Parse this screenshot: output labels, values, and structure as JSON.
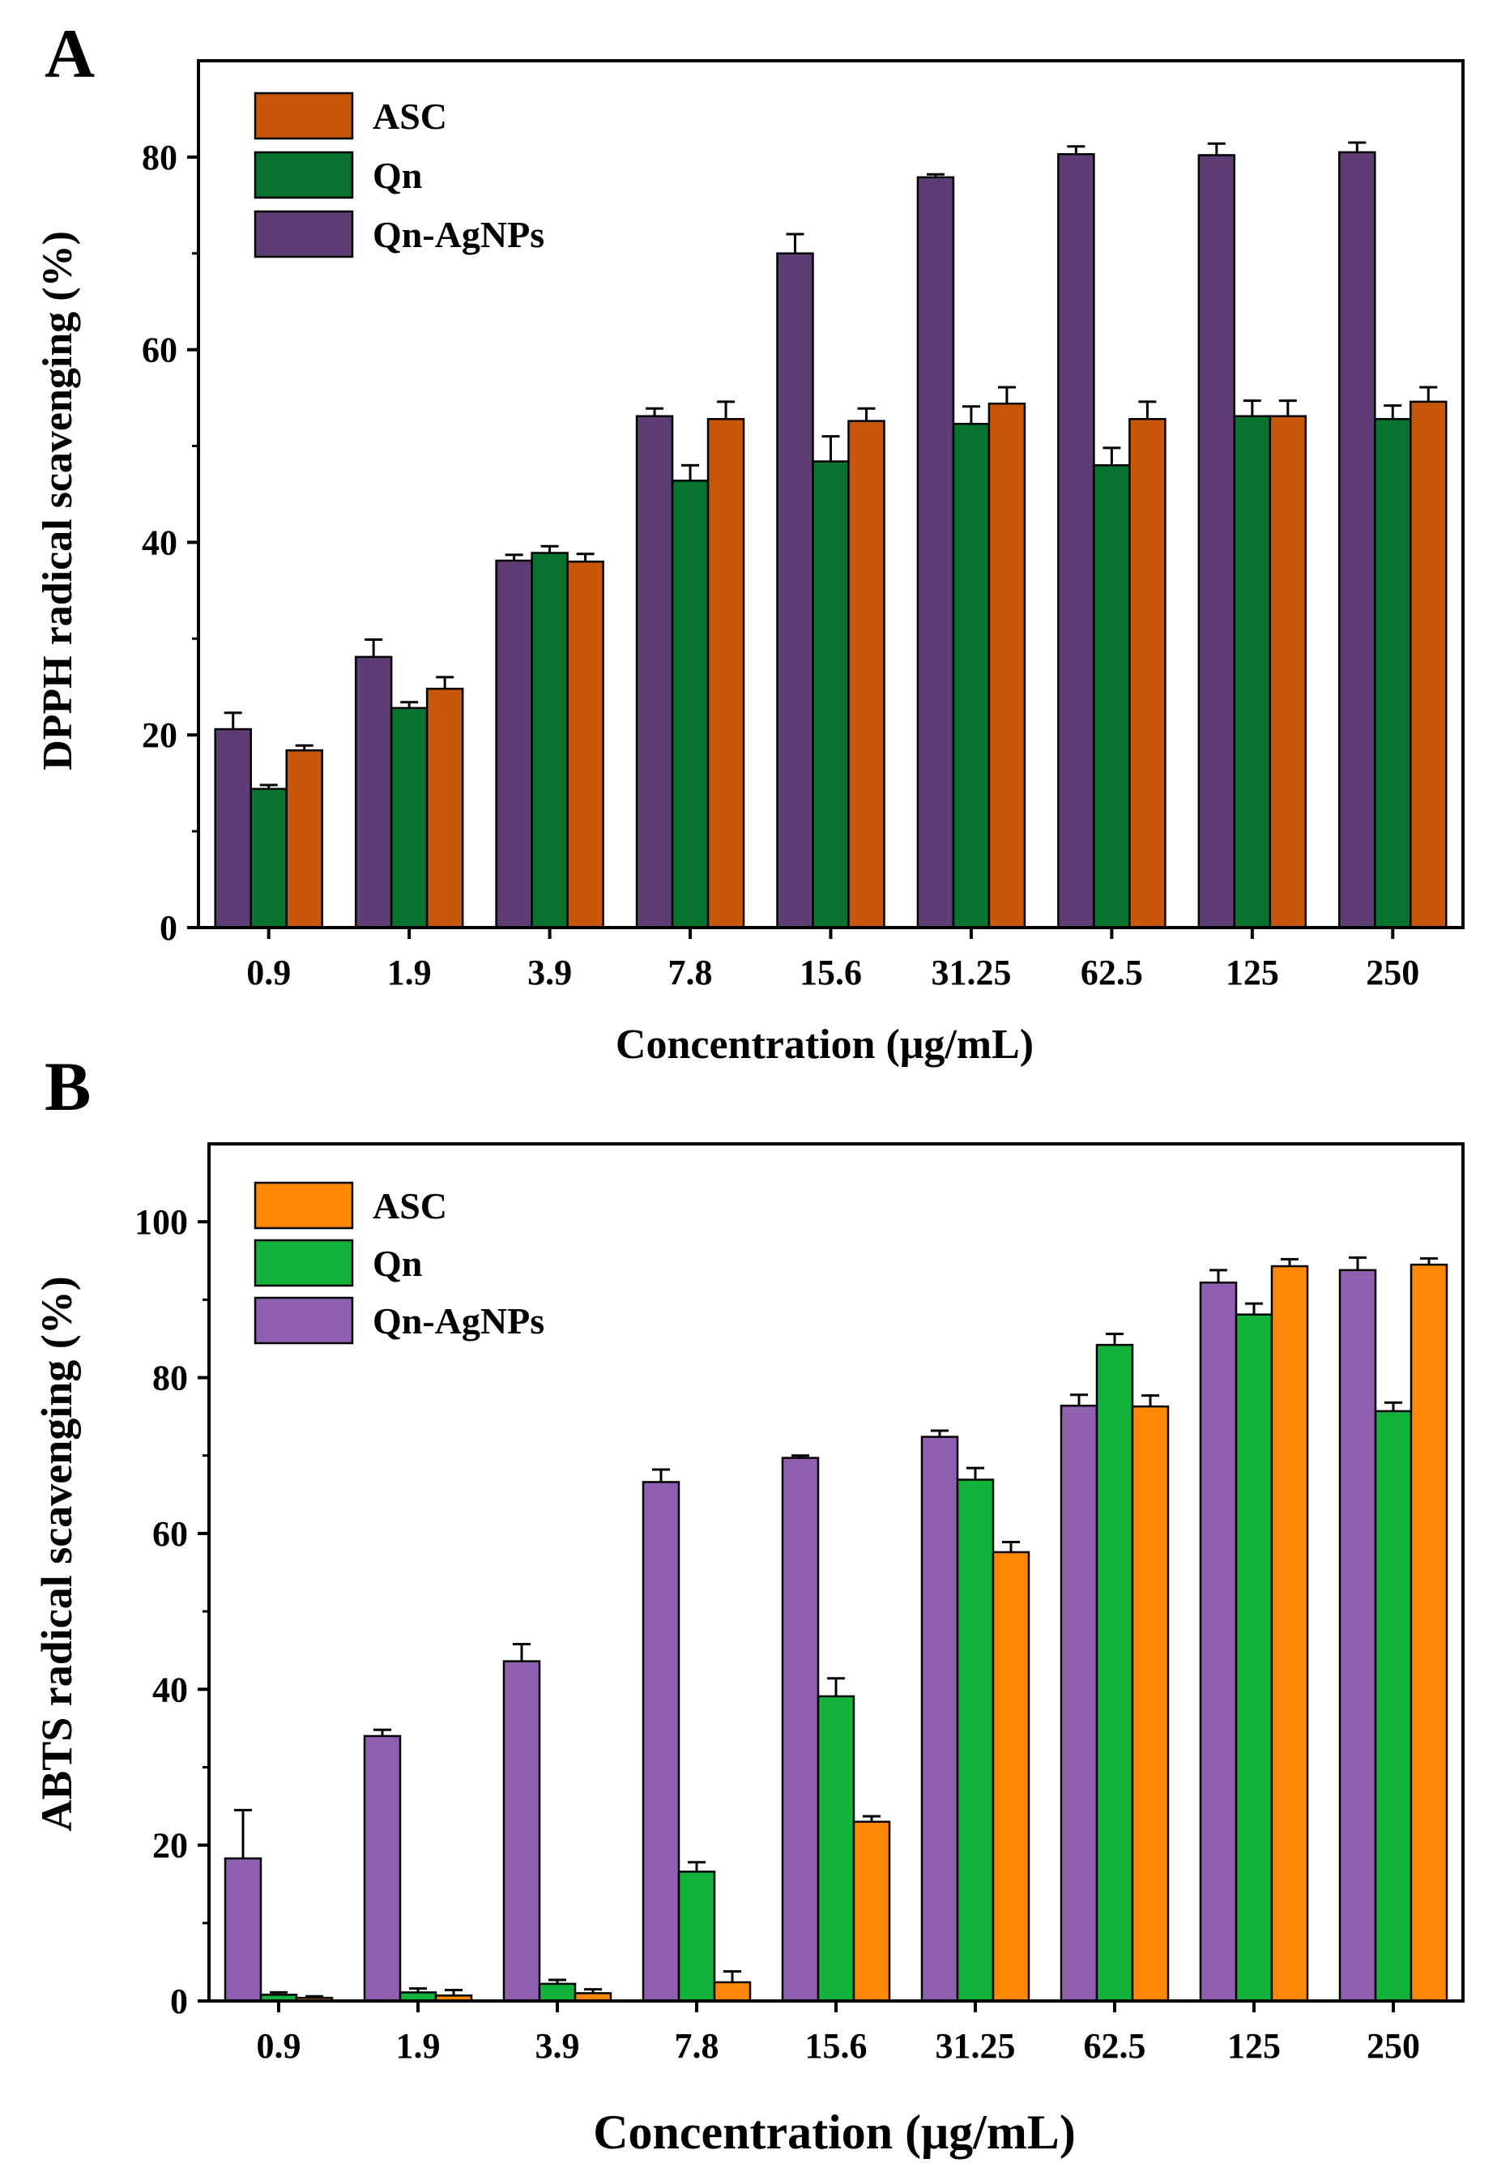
{
  "chart_data": [
    {
      "type": "bar",
      "panel_label": "A",
      "xlabel": "Concentration (μg/mL)",
      "ylabel": "DPPH radical scavenging (%)",
      "ylim": [
        0,
        90
      ],
      "yticks": [
        0,
        20,
        40,
        60,
        80
      ],
      "categories": [
        "0.9",
        "1.9",
        "3.9",
        "7.8",
        "15.6",
        "31.25",
        "62.5",
        "125",
        "250"
      ],
      "legend_position": "top-left",
      "legend_order": [
        "ASC",
        "Qn",
        "Qn-AgNPs"
      ],
      "series": [
        {
          "name": "Qn-AgNPs",
          "color": "#5e3c74",
          "values": [
            20.6,
            28.1,
            38.1,
            53.1,
            70.0,
            77.9,
            80.3,
            80.2,
            80.5
          ],
          "errors": [
            1.7,
            1.8,
            0.6,
            0.8,
            2.0,
            0.3,
            0.8,
            1.2,
            1.0
          ]
        },
        {
          "name": "Qn",
          "color": "#08732f",
          "values": [
            14.4,
            22.8,
            38.9,
            46.4,
            48.4,
            52.3,
            48.0,
            53.1,
            52.8
          ],
          "errors": [
            0.4,
            0.6,
            0.7,
            1.6,
            2.6,
            1.8,
            1.8,
            1.6,
            1.4
          ]
        },
        {
          "name": "ASC",
          "color": "#c8560b",
          "values": [
            18.4,
            24.8,
            38.0,
            52.8,
            52.6,
            54.4,
            52.8,
            53.1,
            54.6
          ],
          "errors": [
            0.5,
            1.2,
            0.8,
            1.8,
            1.3,
            1.7,
            1.8,
            1.6,
            1.5
          ]
        }
      ]
    },
    {
      "type": "bar",
      "panel_label": "B",
      "xlabel": "Concentration (μg/mL)",
      "ylabel": "ABTS radical scavenging (%)",
      "ylim": [
        0,
        110
      ],
      "yticks": [
        0,
        20,
        40,
        60,
        80,
        100
      ],
      "categories": [
        "0.9",
        "1.9",
        "3.9",
        "7.8",
        "15.6",
        "31.25",
        "62.5",
        "125",
        "250"
      ],
      "legend_position": "top-left",
      "legend_order": [
        "ASC",
        "Qn",
        "Qn-AgNPs"
      ],
      "series": [
        {
          "name": "Qn-AgNPs",
          "color": "#8f5fb0",
          "values": [
            18.3,
            34.0,
            43.6,
            66.6,
            69.7,
            72.4,
            76.4,
            92.2,
            93.8
          ],
          "errors": [
            6.2,
            0.8,
            2.2,
            1.6,
            0.3,
            0.8,
            1.4,
            1.6,
            1.6
          ]
        },
        {
          "name": "Qn",
          "color": "#12b23d",
          "values": [
            0.8,
            1.1,
            2.2,
            16.6,
            39.1,
            66.9,
            84.2,
            88.1,
            75.7
          ],
          "errors": [
            0.3,
            0.5,
            0.5,
            1.2,
            2.3,
            1.5,
            1.4,
            1.4,
            1.1
          ]
        },
        {
          "name": "ASC",
          "color": "#ff8808",
          "values": [
            0.4,
            0.7,
            1.0,
            2.4,
            23.0,
            57.6,
            76.3,
            94.3,
            94.5
          ],
          "errors": [
            0.2,
            0.7,
            0.5,
            1.4,
            0.7,
            1.3,
            1.4,
            0.9,
            0.8
          ]
        }
      ]
    }
  ]
}
